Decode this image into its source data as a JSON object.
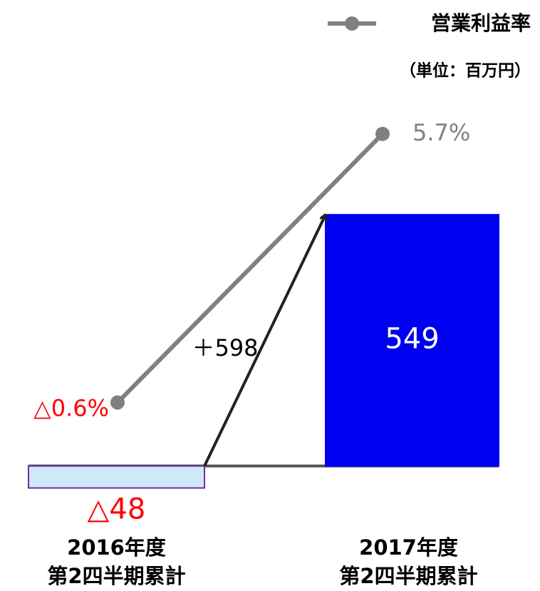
{
  "chart_data": {
    "type": "bar",
    "note": "（単位：百万円）",
    "annotation": "＋598",
    "categories": [
      [
        "2016年度",
        "第2四半期累計"
      ],
      [
        "2017年度",
        "第2四半期累計"
      ]
    ],
    "ylim": [
      -150,
      800
    ],
    "y2lim": [
      -3.7,
      6.5
    ],
    "legend": "top-right",
    "series": [
      {
        "values": [
          -48,
          549
        ],
        "value_labels": [
          "△48",
          "549"
        ],
        "colors": [
          "#cdeaf9",
          "#0000f0"
        ],
        "edge_colors": [
          "#7030a0",
          "#0000f0"
        ],
        "label_colors": [
          "#ff0000",
          "#ffffff"
        ]
      },
      {
        "name": "営業利益率",
        "type": "line",
        "axis": "y2",
        "color": "#808080",
        "values": [
          -0.6,
          5.7
        ],
        "value_labels": [
          "△0.6%",
          "5.7%"
        ],
        "label_colors": [
          "#ff0000",
          "#808080"
        ]
      }
    ]
  }
}
